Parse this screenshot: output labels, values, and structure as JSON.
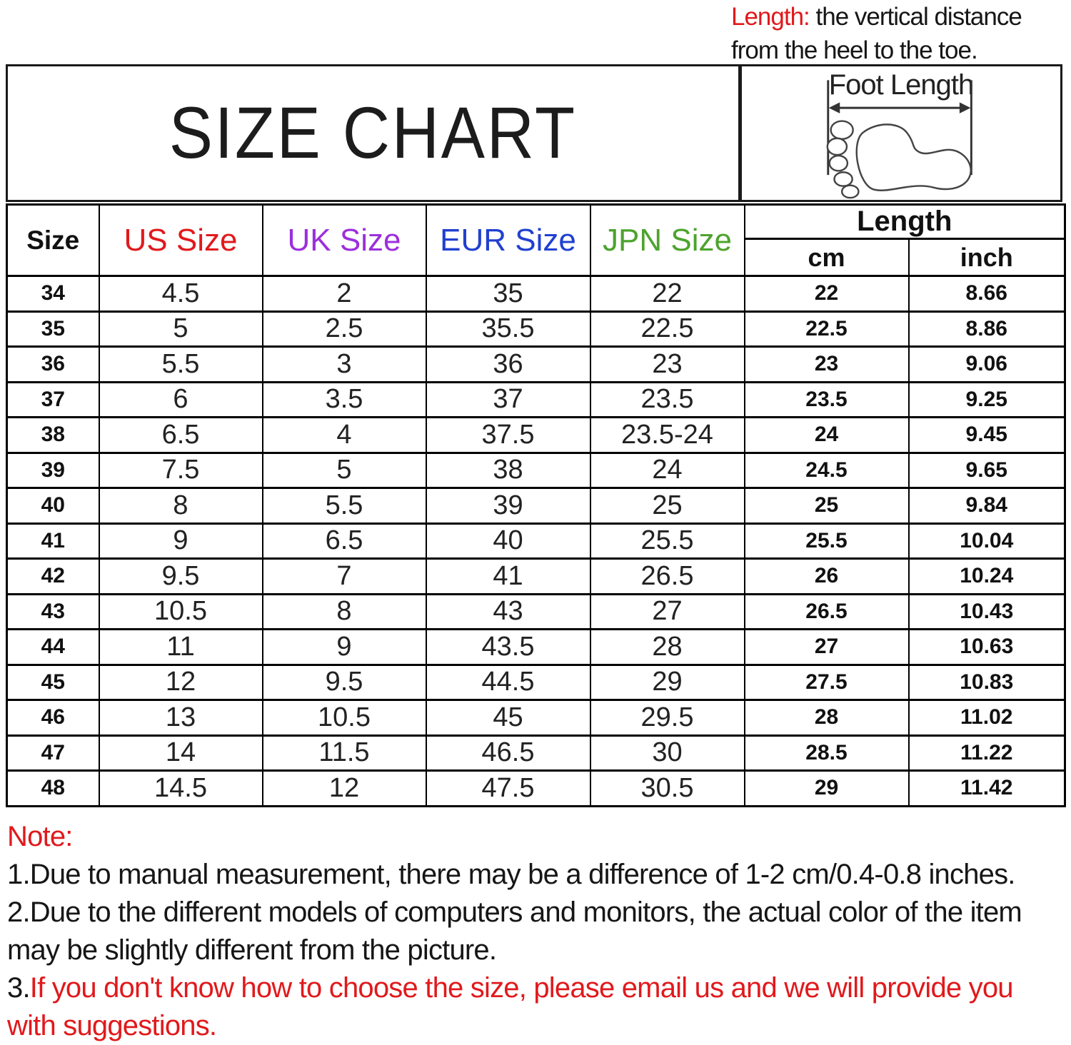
{
  "top_note": {
    "label": "Length:",
    "text_line1": " the vertical distance",
    "text_line2": "from the heel to the toe."
  },
  "title": "SIZE CHART",
  "foot_diagram": {
    "label": "Foot Length"
  },
  "table": {
    "headers": {
      "size": "Size",
      "us": "US Size",
      "uk": "UK Size",
      "eur": "EUR Size",
      "jpn": "JPN Size",
      "length": "Length",
      "cm": "cm",
      "inch": "inch"
    },
    "rows": [
      {
        "size": "34",
        "us": "4.5",
        "uk": "2",
        "eur": "35",
        "jpn": "22",
        "cm": "22",
        "inch": "8.66"
      },
      {
        "size": "35",
        "us": "5",
        "uk": "2.5",
        "eur": "35.5",
        "jpn": "22.5",
        "cm": "22.5",
        "inch": "8.86"
      },
      {
        "size": "36",
        "us": "5.5",
        "uk": "3",
        "eur": "36",
        "jpn": "23",
        "cm": "23",
        "inch": "9.06"
      },
      {
        "size": "37",
        "us": "6",
        "uk": "3.5",
        "eur": "37",
        "jpn": "23.5",
        "cm": "23.5",
        "inch": "9.25"
      },
      {
        "size": "38",
        "us": "6.5",
        "uk": "4",
        "eur": "37.5",
        "jpn": "23.5-24",
        "cm": "24",
        "inch": "9.45"
      },
      {
        "size": "39",
        "us": "7.5",
        "uk": "5",
        "eur": "38",
        "jpn": "24",
        "cm": "24.5",
        "inch": "9.65"
      },
      {
        "size": "40",
        "us": "8",
        "uk": "5.5",
        "eur": "39",
        "jpn": "25",
        "cm": "25",
        "inch": "9.84"
      },
      {
        "size": "41",
        "us": "9",
        "uk": "6.5",
        "eur": "40",
        "jpn": "25.5",
        "cm": "25.5",
        "inch": "10.04"
      },
      {
        "size": "42",
        "us": "9.5",
        "uk": "7",
        "eur": "41",
        "jpn": "26.5",
        "cm": "26",
        "inch": "10.24"
      },
      {
        "size": "43",
        "us": "10.5",
        "uk": "8",
        "eur": "43",
        "jpn": "27",
        "cm": "26.5",
        "inch": "10.43"
      },
      {
        "size": "44",
        "us": "11",
        "uk": "9",
        "eur": "43.5",
        "jpn": "28",
        "cm": "27",
        "inch": "10.63"
      },
      {
        "size": "45",
        "us": "12",
        "uk": "9.5",
        "eur": "44.5",
        "jpn": "29",
        "cm": "27.5",
        "inch": "10.83"
      },
      {
        "size": "46",
        "us": "13",
        "uk": "10.5",
        "eur": "45",
        "jpn": "29.5",
        "cm": "28",
        "inch": "11.02"
      },
      {
        "size": "47",
        "us": "14",
        "uk": "11.5",
        "eur": "46.5",
        "jpn": "30",
        "cm": "28.5",
        "inch": "11.22"
      },
      {
        "size": "48",
        "us": "14.5",
        "uk": "12",
        "eur": "47.5",
        "jpn": "30.5",
        "cm": "29",
        "inch": "11.42"
      }
    ]
  },
  "notes": {
    "heading": "Note:",
    "line1": "1.Due to manual measurement, there may be a difference of 1-2 cm/0.4-0.8 inches.",
    "line2a": "2.Due to the different models of computers and monitors, the actual color of the item",
    "line2b": "may be slightly different from the picture.",
    "line3_prefix": "3.",
    "line3a": "If you don't know how to choose the size, please email us and we will provide you",
    "line3b": "with suggestions."
  },
  "colors": {
    "accent_red": "#e1191c",
    "uk_purple": "#9c2fdc",
    "eur_blue": "#2040d0",
    "jpn_green": "#4da32d",
    "border_black": "#000000"
  }
}
